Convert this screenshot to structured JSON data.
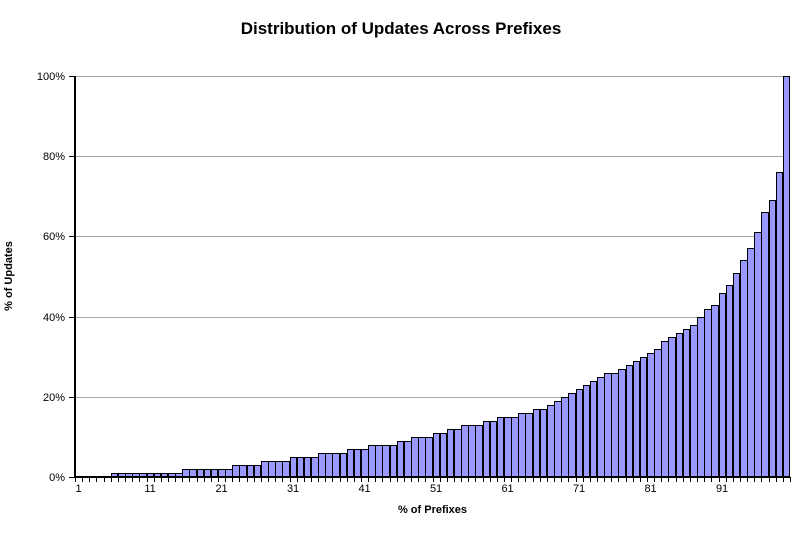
{
  "chart_data": {
    "type": "bar",
    "title": "Distribution of Updates Across Prefixes",
    "xlabel": "% of Prefixes",
    "ylabel": "% of Updates",
    "x_range": [
      1,
      100
    ],
    "ylim": [
      0,
      100
    ],
    "grid": "horizontal",
    "legend": "none",
    "y_tick_labels": [
      "0%",
      "20%",
      "40%",
      "60%",
      "80%",
      "100%"
    ],
    "y_tick_values": [
      0,
      20,
      40,
      60,
      80,
      100
    ],
    "x_tick_labels": [
      1,
      11,
      21,
      31,
      41,
      51,
      61,
      71,
      81,
      91
    ],
    "categories_note": "one bar per percent of prefixes, 1..100",
    "values": [
      0,
      0,
      0,
      0,
      0,
      1,
      1,
      1,
      1,
      1,
      1,
      1,
      1,
      1,
      1,
      2,
      2,
      2,
      2,
      2,
      2,
      2,
      3,
      3,
      3,
      3,
      4,
      4,
      4,
      4,
      5,
      5,
      5,
      5,
      6,
      6,
      6,
      6,
      7,
      7,
      7,
      8,
      8,
      8,
      8,
      9,
      9,
      10,
      10,
      10,
      11,
      11,
      12,
      12,
      13,
      13,
      13,
      14,
      14,
      15,
      15,
      15,
      16,
      16,
      17,
      17,
      18,
      19,
      20,
      21,
      22,
      23,
      24,
      25,
      26,
      26,
      27,
      28,
      29,
      30,
      31,
      32,
      34,
      35,
      36,
      37,
      38,
      40,
      42,
      43,
      46,
      48,
      51,
      54,
      57,
      61,
      66,
      69,
      76,
      100
    ],
    "colors": {
      "bar_fill": "#9999ff",
      "bar_border": "#000000",
      "gridline": "#a6a6a6",
      "axis": "#000000",
      "background": "#ffffff",
      "text": "#000000"
    }
  }
}
